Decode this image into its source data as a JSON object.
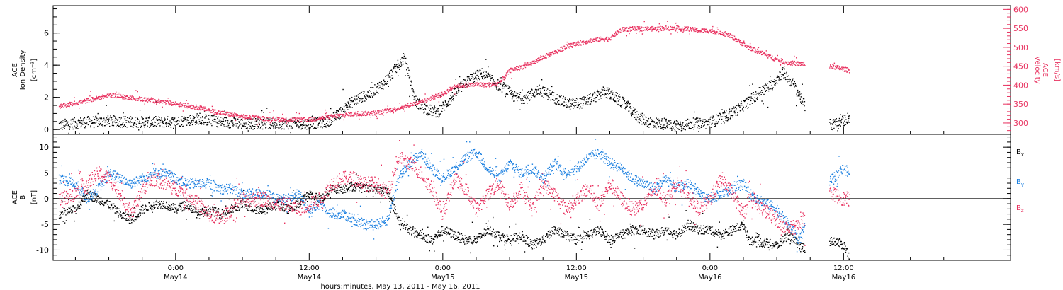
{
  "colors": {
    "black": "#000000",
    "pink": "#e8315f",
    "blue": "#1a7fe0"
  },
  "chart_data": [
    {
      "type": "scatter",
      "ylabel_lines": [
        "ACE",
        "Ion Density"
      ],
      "yunit": "[cm⁻³]",
      "ylim": [
        -0.3,
        7.7
      ],
      "yticks": [
        0,
        2,
        4,
        6
      ],
      "y2label_lines": [
        "ACE",
        "Velocity"
      ],
      "y2unit": "[km/s]",
      "y2lim": [
        270,
        610
      ],
      "y2ticks": [
        300,
        350,
        400,
        450,
        500,
        550,
        600
      ],
      "series": [
        {
          "key": "density",
          "axis": "left",
          "color": "#000000",
          "spread": 0.35,
          "x": [
            -10.5,
            -8,
            -6,
            -4,
            -2,
            0,
            2,
            4,
            6,
            8,
            10,
            12,
            13.5,
            14.5,
            15.5,
            16.5,
            17.5,
            18.5,
            19.5,
            20.5,
            21.5,
            22.5,
            23.5,
            24.5,
            25.5,
            26.5,
            27.5,
            28.5,
            29.5,
            30.5,
            31.5,
            32.5,
            33.5,
            34.5,
            35.5,
            36.5,
            37.5,
            38.5,
            39.5,
            40.5,
            41.5,
            42.5,
            43.5,
            44.5,
            45.5,
            46.5,
            47.5,
            48.5,
            49.5,
            50.5,
            51.5,
            52.5,
            53.5,
            54.5,
            55.5,
            56.5,
            57.5,
            58.5,
            59.5,
            60.5
          ],
          "y": [
            0.3,
            0.5,
            0.55,
            0.5,
            0.5,
            0.5,
            0.7,
            0.5,
            0.4,
            0.4,
            0.4,
            0.4,
            0.5,
            0.9,
            1.6,
            2.0,
            2.3,
            2.8,
            3.6,
            4.5,
            1.8,
            1.3,
            1.1,
            1.8,
            2.6,
            3.2,
            3.5,
            3.0,
            2.6,
            2.0,
            2.0,
            2.5,
            2.2,
            1.8,
            1.6,
            1.7,
            2.0,
            2.4,
            2.0,
            1.5,
            0.8,
            0.5,
            0.4,
            0.3,
            0.3,
            0.4,
            0.4,
            0.6,
            0.9,
            1.3,
            1.8,
            2.4,
            2.8,
            3.6,
            2.8,
            1.5,
            0.4,
            0.3,
            0.4,
            0.8
          ]
        },
        {
          "key": "velocity",
          "axis": "right",
          "color": "#e8315f",
          "spread": 6,
          "x": [
            -10.5,
            -8,
            -6,
            -4,
            -2,
            0,
            2,
            4,
            6,
            8,
            10,
            12,
            14,
            16,
            18,
            20,
            21,
            22,
            23,
            24,
            25,
            26,
            27,
            28,
            29,
            30,
            31,
            32,
            33,
            34,
            35,
            36,
            37,
            38,
            39,
            40,
            41,
            42,
            43,
            44,
            45,
            46,
            47,
            48,
            49,
            50,
            51,
            51.5,
            54,
            55,
            56,
            57,
            58,
            59,
            60.5
          ],
          "y": [
            345,
            360,
            375,
            368,
            360,
            352,
            342,
            328,
            318,
            313,
            310,
            310,
            318,
            325,
            328,
            340,
            350,
            355,
            368,
            378,
            398,
            402,
            403,
            402,
            405,
            440,
            448,
            460,
            475,
            488,
            502,
            510,
            518,
            522,
            525,
            548,
            550,
            550,
            550,
            552,
            550,
            550,
            545,
            545,
            540,
            528,
            508,
            500,
            468,
            460,
            458,
            455,
            458,
            450,
            440
          ]
        }
      ]
    },
    {
      "type": "scatter",
      "ylabel_lines": [
        "ACE",
        "B"
      ],
      "yunit": "[nT]",
      "ylim": [
        -12,
        12.5
      ],
      "yticks": [
        -10,
        -5,
        0,
        5,
        10
      ],
      "series": [
        {
          "name": "Bx",
          "sub": "x",
          "key": "bx",
          "color": "#000000",
          "spread": 0.9,
          "x": [
            -10.5,
            -9,
            -8,
            -7,
            -6,
            -5,
            -4,
            -3,
            -2,
            -1,
            0,
            1,
            2,
            3,
            4,
            5,
            6,
            7,
            8,
            9,
            10,
            11,
            12,
            13,
            14,
            15,
            16,
            17,
            18,
            19,
            20,
            21,
            22,
            23,
            24,
            25,
            26,
            27,
            28,
            29,
            30,
            31,
            32,
            33,
            34,
            35,
            36,
            37,
            38,
            39,
            40,
            41,
            42,
            43,
            44,
            45,
            46,
            47,
            48,
            49,
            50,
            51,
            51.5,
            54,
            55,
            56,
            57,
            58,
            59,
            60,
            60.5
          ],
          "y": [
            -3,
            -2,
            1,
            0,
            -1,
            -3,
            -4,
            -2,
            -1,
            -1,
            -2,
            -1,
            -3,
            -2,
            -3,
            -2,
            -1,
            -2,
            -2,
            -1,
            -2,
            -1,
            1,
            0,
            2,
            2,
            2.5,
            2,
            2,
            1.5,
            -4,
            -6,
            -7,
            -8,
            -6,
            -7,
            -8,
            -8,
            -6,
            -7,
            -8,
            -7,
            -9,
            -8,
            -6,
            -7,
            -8,
            -7,
            -6,
            -8,
            -7,
            -6,
            -6,
            -7,
            -6,
            -7,
            -5,
            -6,
            -6,
            -7,
            -6,
            -5,
            -8,
            -9,
            -7,
            -9,
            -10,
            -10,
            -8,
            -9,
            -11
          ]
        },
        {
          "name": "By",
          "sub": "y",
          "key": "by",
          "color": "#1a7fe0",
          "spread": 1.0,
          "x": [
            -10.5,
            -9,
            -8,
            -7,
            -6,
            -5,
            -4,
            -3,
            -2,
            -1,
            0,
            1,
            2,
            3,
            4,
            5,
            6,
            7,
            8,
            9,
            10,
            11,
            12,
            13,
            14,
            15,
            16,
            17,
            18,
            19,
            20,
            21,
            22,
            23,
            24,
            25,
            26,
            27,
            28,
            29,
            30,
            31,
            32,
            33,
            34,
            35,
            36,
            37,
            38,
            39,
            40,
            41,
            42,
            43,
            44,
            45,
            46,
            47,
            48,
            49,
            50,
            51,
            51.5,
            54,
            55,
            56,
            57,
            58,
            59,
            60,
            60.5
          ],
          "y": [
            4,
            3,
            0,
            2,
            5,
            4,
            3,
            4,
            5,
            5,
            4,
            3,
            3,
            3,
            2,
            2,
            1,
            1,
            1,
            0,
            0,
            1,
            -2,
            -1,
            -3,
            -3,
            -4,
            -5,
            -5,
            -4,
            4,
            7,
            9,
            6,
            4,
            6,
            8,
            9,
            6,
            4,
            7,
            5,
            6,
            4,
            7,
            5,
            6,
            8,
            9,
            7,
            6,
            4,
            3,
            2,
            4,
            2,
            3,
            1,
            0,
            1,
            2,
            3,
            1,
            -2,
            -5,
            -8,
            -3,
            2,
            4,
            6,
            5
          ]
        },
        {
          "name": "Bz",
          "sub": "z",
          "key": "bz",
          "color": "#e8315f",
          "spread": 1.4,
          "x": [
            -10.5,
            -9,
            -8,
            -7,
            -6,
            -5,
            -4,
            -3,
            -2,
            -1,
            0,
            1,
            2,
            3,
            4,
            5,
            6,
            7,
            8,
            9,
            10,
            11,
            12,
            13,
            14,
            15,
            16,
            17,
            18,
            19,
            20,
            21,
            22,
            23,
            24,
            25,
            26,
            27,
            28,
            29,
            30,
            31,
            32,
            33,
            34,
            35,
            36,
            37,
            38,
            39,
            40,
            41,
            42,
            43,
            44,
            45,
            46,
            47,
            48,
            49,
            50,
            51,
            51.5,
            54,
            55,
            56,
            57,
            58,
            59,
            60,
            60.5
          ],
          "y": [
            0,
            1,
            3,
            5,
            4,
            1,
            -3,
            2,
            4,
            3,
            2,
            1,
            -1,
            -3,
            -4,
            -2,
            0,
            0,
            0,
            -1,
            -1,
            -2,
            -1,
            0,
            3,
            4,
            4,
            3,
            3,
            1,
            8,
            7,
            5,
            2,
            -3,
            4,
            2,
            -2,
            1,
            3,
            -1,
            2,
            -2,
            3,
            1,
            -2,
            0,
            2,
            -1,
            3,
            0,
            -2,
            -1,
            2,
            0,
            3,
            1,
            -2,
            0,
            4,
            1,
            -3,
            0,
            -4,
            -6,
            -5,
            -2,
            2,
            1,
            0,
            0
          ]
        }
      ]
    }
  ],
  "xaxis": {
    "range_hours": [
      -11,
      75
    ],
    "ticks": [
      {
        "h": 0,
        "time": "0:00",
        "day": "May14"
      },
      {
        "h": 12,
        "time": "12:00",
        "day": "May14"
      },
      {
        "h": 24,
        "time": "0:00",
        "day": "May15"
      },
      {
        "h": 36,
        "time": "12:00",
        "day": "May15"
      },
      {
        "h": 48,
        "time": "0:00",
        "day": "May16"
      },
      {
        "h": 60,
        "time": "12:00",
        "day": "May16"
      }
    ],
    "label": "hours:minutes, May 13, 2011 - May 16, 2011"
  }
}
